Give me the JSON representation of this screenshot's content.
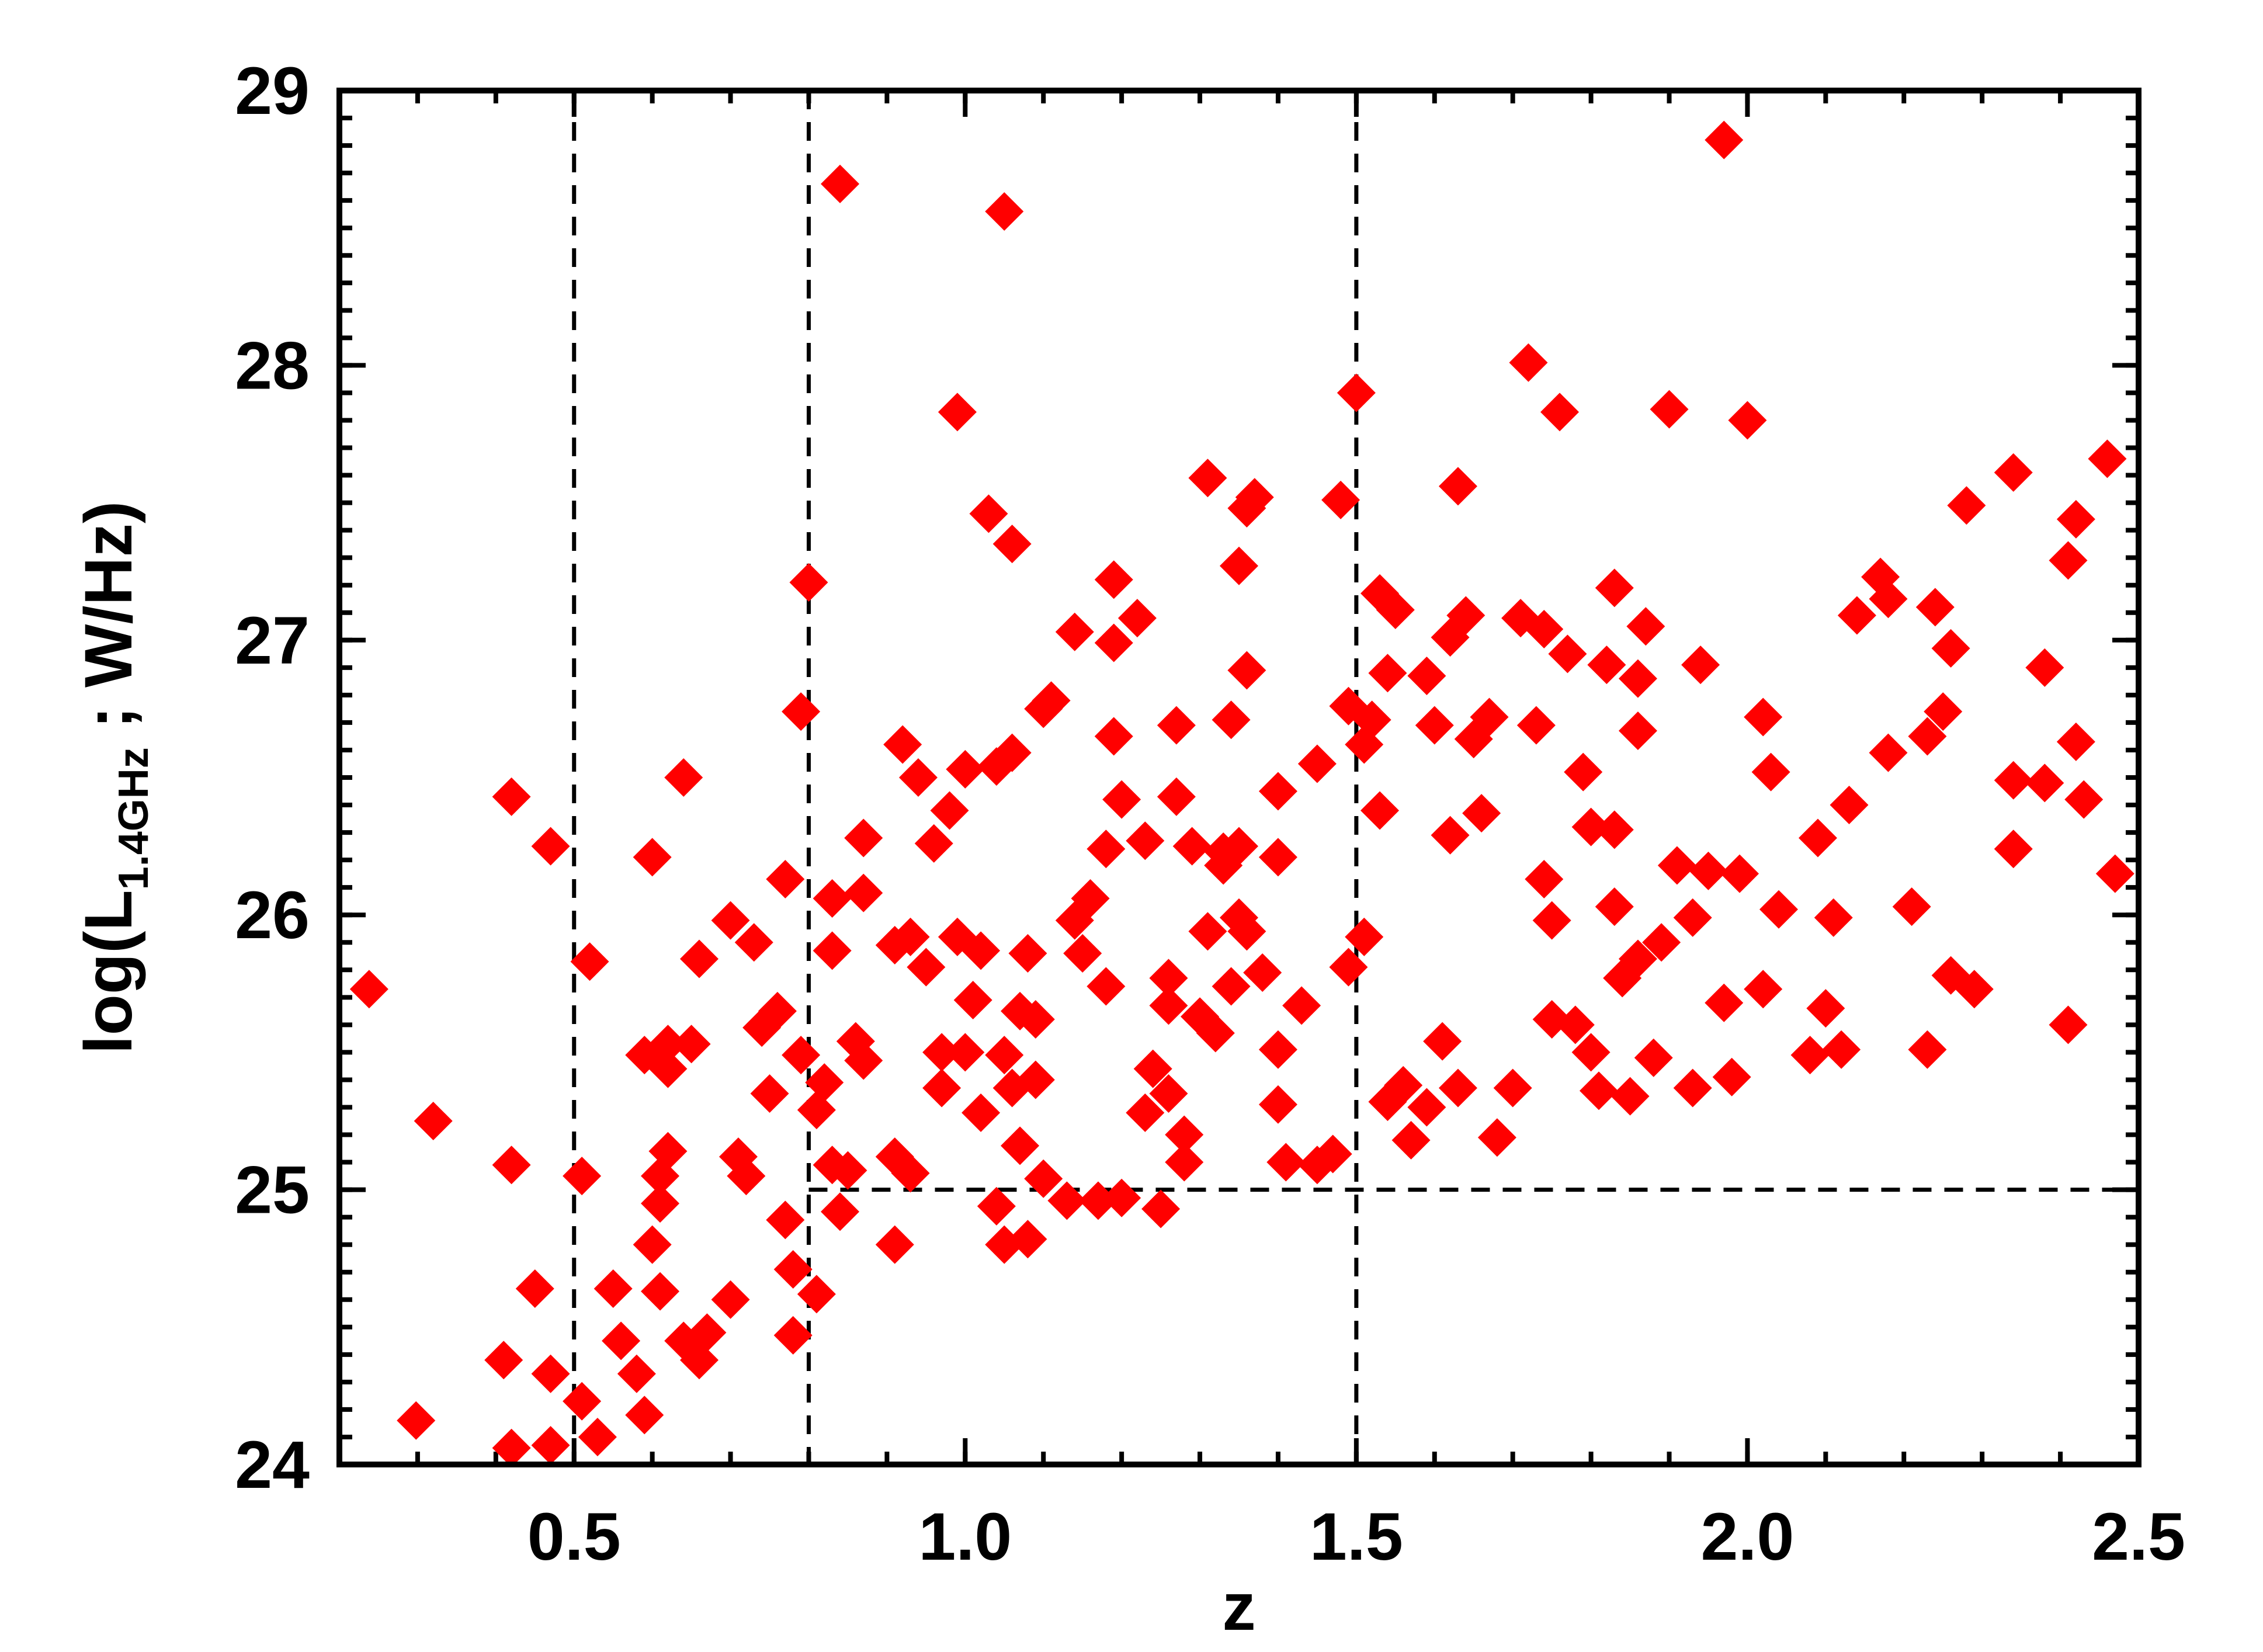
{
  "chart_data": {
    "type": "scatter",
    "x_label": "z",
    "y_label_parts": [
      "log(L",
      "1.4GHz",
      " ; W/Hz)"
    ],
    "color": "#ff0000",
    "marker": "diamond",
    "xlim": [
      0.2,
      2.5
    ],
    "ylim": [
      24,
      29
    ],
    "xticks": [
      0.5,
      {
        "value": 1,
        "label": "1.0"
      },
      1.5,
      {
        "value": 2,
        "label": "2.0"
      },
      2.5
    ],
    "yticks": [
      24,
      25,
      26,
      27,
      28,
      29
    ],
    "x_minor_step": 0.1,
    "y_minor_step": 0.1,
    "vlines": [
      0.5,
      0.8,
      1.5
    ],
    "hlines": [
      {
        "y": 25,
        "xmin": 0.8
      }
    ],
    "x": [
      0.238,
      0.298,
      0.32,
      0.41,
      0.42,
      0.42,
      0.42,
      0.45,
      0.47,
      0.47,
      0.47,
      0.51,
      0.52,
      0.51,
      0.53,
      0.55,
      0.56,
      0.58,
      0.59,
      0.6,
      0.59,
      0.6,
      0.61,
      0.61,
      0.61,
      0.62,
      0.62,
      0.62,
      0.64,
      0.64,
      0.65,
      0.66,
      0.66,
      0.67,
      0.7,
      0.7,
      0.71,
      0.72,
      0.73,
      0.74,
      0.75,
      0.76,
      0.77,
      0.77,
      0.78,
      0.79,
      0.78,
      0.79,
      0.8,
      0.81,
      0.81,
      0.82,
      0.83,
      0.83,
      0.83,
      0.84,
      0.84,
      0.85,
      0.86,
      0.87,
      0.87,
      0.87,
      0.91,
      0.91,
      0.91,
      0.92,
      0.93,
      0.93,
      0.94,
      0.95,
      0.96,
      0.97,
      0.97,
      0.98,
      0.99,
      0.99,
      1.0,
      1.0,
      1.01,
      1.02,
      1.02,
      1.03,
      1.04,
      1.04,
      1.05,
      1.05,
      1.05,
      1.06,
      1.06,
      1.06,
      1.07,
      1.07,
      1.08,
      1.08,
      1.09,
      1.09,
      1.1,
      1.1,
      1.11,
      1.13,
      1.14,
      1.14,
      1.15,
      1.16,
      1.17,
      1.18,
      1.18,
      1.19,
      1.19,
      1.19,
      1.2,
      1.2,
      1.22,
      1.23,
      1.23,
      1.24,
      1.25,
      1.26,
      1.26,
      1.26,
      1.27,
      1.27,
      1.28,
      1.28,
      1.29,
      1.3,
      1.31,
      1.31,
      1.32,
      1.33,
      1.33,
      1.34,
      1.34,
      1.35,
      1.35,
      1.35,
      1.36,
      1.36,
      1.36,
      1.37,
      1.38,
      1.4,
      1.4,
      1.4,
      1.4,
      1.41,
      1.43,
      1.45,
      1.45,
      1.47,
      1.48,
      1.5,
      1.49,
      1.49,
      1.51,
      1.51,
      1.52,
      1.53,
      1.53,
      1.54,
      1.54,
      1.55,
      1.56,
      1.57,
      1.59,
      1.59,
      1.6,
      1.61,
      1.62,
      1.62,
      1.63,
      1.63,
      1.64,
      1.65,
      1.66,
      1.67,
      1.68,
      1.7,
      1.71,
      1.72,
      1.73,
      1.74,
      1.74,
      1.75,
      1.75,
      1.76,
      1.77,
      1.78,
      1.79,
      1.8,
      1.8,
      1.81,
      1.82,
      1.83,
      1.83,
      1.83,
      1.84,
      1.85,
      1.86,
      1.86,
      1.86,
      1.87,
      1.89,
      1.9,
      1.88,
      1.91,
      1.93,
      1.93,
      1.94,
      1.95,
      1.97,
      1.97,
      1.98,
      2.0,
      1.99,
      2.02,
      2.02,
      2.03,
      2.04,
      2.08,
      2.09,
      2.1,
      2.11,
      2.12,
      2.13,
      2.14,
      2.17,
      2.18,
      2.18,
      2.21,
      2.23,
      2.23,
      2.24,
      2.25,
      2.26,
      2.26,
      2.28,
      2.29,
      2.34,
      2.34,
      2.34,
      2.38,
      2.38,
      2.41,
      2.41,
      2.42,
      2.42,
      2.43,
      2.46,
      2.47
    ],
    "values": [
      25.73,
      24.16,
      25.25,
      24.38,
      26.43,
      25.09,
      24.06,
      24.64,
      26.25,
      24.07,
      24.33,
      25.05,
      25.83,
      24.23,
      24.1,
      24.64,
      24.45,
      24.33,
      24.18,
      24.8,
      25.49,
      26.21,
      25.05,
      24.63,
      24.95,
      25.53,
      25.14,
      25.44,
      26.5,
      24.45,
      25.53,
      24.38,
      25.84,
      24.48,
      25.98,
      24.6,
      25.12,
      25.05,
      25.9,
      25.59,
      25.35,
      25.65,
      24.89,
      26.13,
      24.71,
      26.74,
      24.47,
      25.49,
      27.21,
      24.62,
      25.29,
      25.39,
      25.87,
      26.06,
      25.09,
      24.92,
      28.66,
      25.07,
      25.54,
      26.08,
      26.28,
      25.47,
      25.12,
      24.8,
      25.89,
      26.62,
      25.92,
      25.06,
      26.5,
      25.81,
      26.26,
      25.37,
      25.5,
      26.38,
      25.92,
      27.83,
      25.5,
      26.53,
      25.69,
      25.28,
      25.87,
      27.46,
      26.54,
      24.94,
      25.49,
      28.56,
      24.8,
      27.35,
      26.59,
      25.37,
      25.65,
      25.16,
      24.82,
      25.86,
      25.4,
      25.62,
      26.75,
      25.04,
      26.78,
      24.96,
      27.03,
      25.98,
      25.86,
      26.06,
      24.96,
      26.24,
      25.74,
      27.22,
      26.99,
      26.65,
      26.42,
      24.97,
      27.08,
      25.28,
      26.27,
      25.44,
      24.93,
      25.35,
      25.67,
      25.77,
      26.69,
      26.43,
      25.1,
      25.2,
      26.25,
      25.63,
      27.59,
      25.94,
      25.57,
      26.18,
      26.23,
      26.71,
      25.74,
      25.99,
      27.27,
      26.25,
      27.48,
      26.89,
      25.94,
      27.52,
      25.79,
      26.45,
      25.31,
      26.21,
      25.51,
      25.1,
      25.67,
      25.09,
      26.55,
      25.13,
      27.51,
      27.9,
      25.81,
      26.76,
      25.92,
      26.62,
      26.71,
      27.17,
      26.38,
      26.88,
      25.32,
      27.11,
      25.38,
      25.18,
      26.87,
      25.3,
      26.69,
      25.54,
      27.01,
      26.29,
      27.56,
      25.37,
      27.09,
      26.64,
      26.37,
      26.72,
      25.19,
      25.37,
      27.08,
      28.01,
      26.69,
      27.04,
      26.13,
      25.98,
      25.62,
      27.83,
      26.95,
      25.6,
      26.52,
      26.32,
      25.5,
      25.36,
      26.91,
      27.19,
      26.31,
      26.03,
      25.77,
      25.34,
      25.84,
      26.86,
      26.67,
      27.05,
      25.9,
      27.84,
      25.48,
      26.18,
      25.37,
      25.99,
      26.91,
      26.16,
      28.82,
      25.68,
      25.41,
      27.8,
      26.15,
      26.72,
      25.73,
      26.52,
      26.02,
      25.49,
      26.28,
      25.66,
      25.99,
      25.51,
      26.4,
      27.09,
      27.23,
      27.15,
      26.59,
      26.03,
      25.51,
      26.65,
      27.12,
      26.74,
      26.97,
      25.78,
      27.49,
      25.73,
      26.24,
      27.61,
      26.49,
      26.48,
      26.9,
      27.29,
      25.6,
      26.63,
      27.44,
      26.42,
      27.66,
      26.15
    ]
  }
}
